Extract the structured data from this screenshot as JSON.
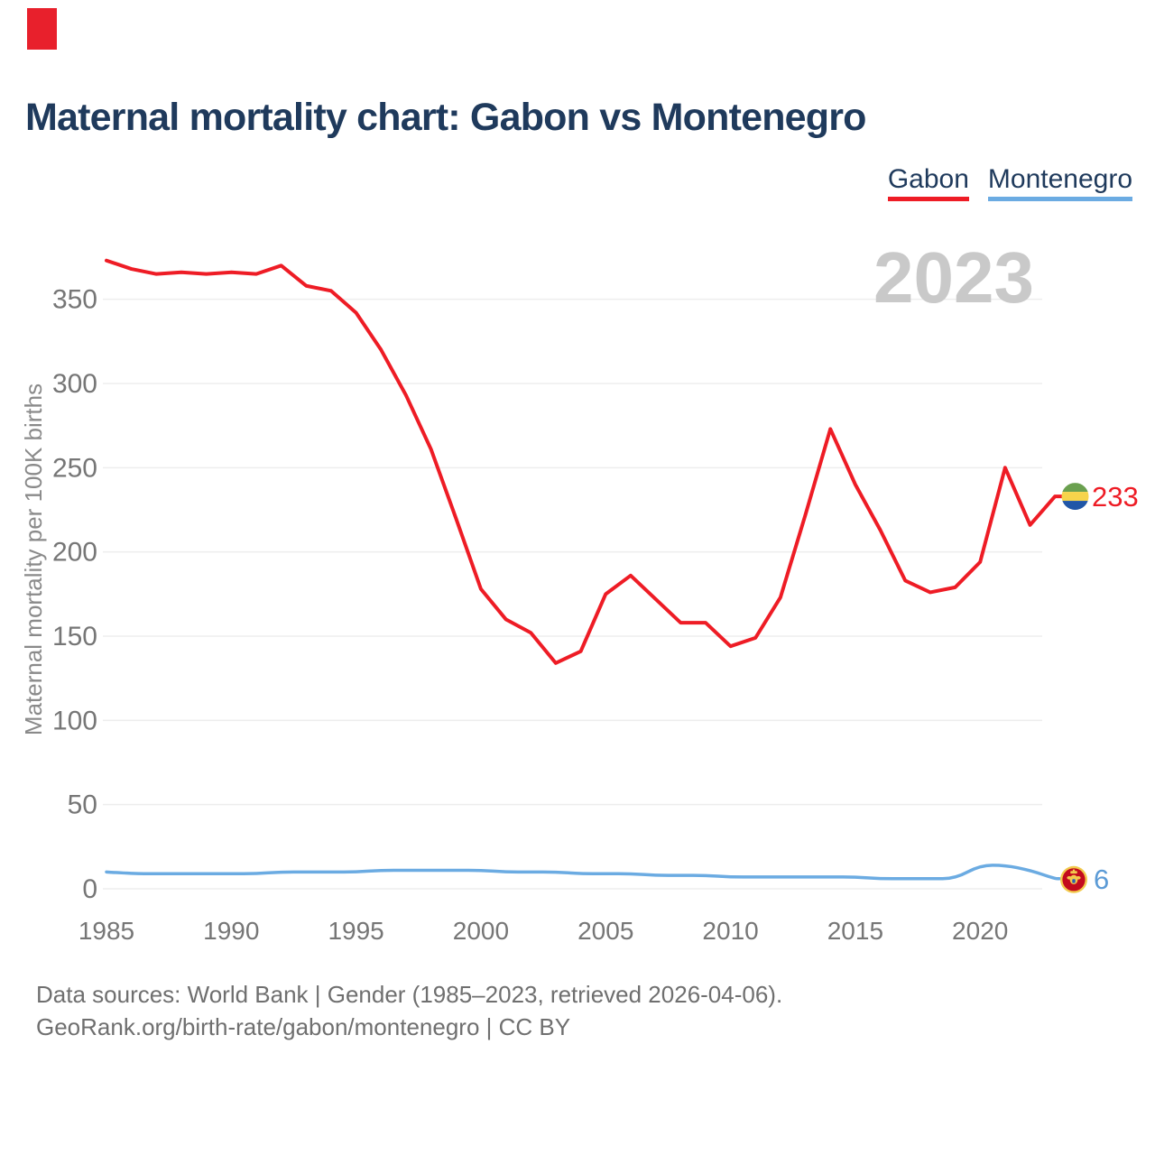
{
  "page": {
    "background": "#ffffff",
    "marker_color": "#e8202c"
  },
  "header": {
    "title": "Maternal mortality chart: Gabon vs Montenegro"
  },
  "legend": {
    "items": [
      {
        "label": "Gabon",
        "color": "#ee1c25"
      },
      {
        "label": "Montenegro",
        "color": "#6babe2"
      }
    ]
  },
  "watermark": {
    "text": "2023",
    "color": "#c9c9c9"
  },
  "chart_data": {
    "type": "line",
    "title": "Maternal mortality chart: Gabon vs Montenegro",
    "ylabel": "Maternal mortality per 100K births",
    "xlabel": "",
    "grid": "horizontal-only",
    "legend_position": "top-right",
    "x_ticks": [
      1985,
      1990,
      1995,
      2000,
      2005,
      2010,
      2015,
      2020
    ],
    "y_ticks": [
      0,
      50,
      100,
      150,
      200,
      250,
      300,
      350
    ],
    "ylim": [
      0,
      395
    ],
    "x": [
      1985,
      1986,
      1987,
      1988,
      1989,
      1990,
      1991,
      1992,
      1993,
      1994,
      1995,
      1996,
      1997,
      1998,
      1999,
      2000,
      2001,
      2002,
      2003,
      2004,
      2005,
      2006,
      2007,
      2008,
      2009,
      2010,
      2011,
      2012,
      2013,
      2014,
      2015,
      2016,
      2017,
      2018,
      2019,
      2020,
      2021,
      2022,
      2023
    ],
    "series": [
      {
        "name": "Gabon",
        "color": "#ee1c25",
        "end_label": "233",
        "values": [
          373,
          368,
          365,
          366,
          365,
          366,
          365,
          370,
          358,
          355,
          342,
          320,
          293,
          261,
          220,
          178,
          160,
          152,
          134,
          141,
          175,
          186,
          172,
          158,
          158,
          144,
          149,
          173,
          222,
          273,
          240,
          213,
          183,
          176,
          179,
          194,
          250,
          216,
          233
        ]
      },
      {
        "name": "Montenegro",
        "color": "#6babe2",
        "end_label": "6",
        "values": [
          10,
          9,
          9,
          9,
          9,
          9,
          9,
          10,
          10,
          10,
          10,
          11,
          11,
          11,
          11,
          11,
          10,
          10,
          10,
          9,
          9,
          9,
          8,
          8,
          8,
          7,
          7,
          7,
          7,
          7,
          7,
          6,
          6,
          6,
          6,
          14,
          14,
          11,
          6
        ]
      }
    ],
    "icons": {
      "gabon_flag_colors": [
        "#6aa04f",
        "#f6d44b",
        "#2056a7"
      ],
      "montenegro_flag_colors": [
        "#f2ca4d",
        "#c30b1e",
        "#2b5fb0"
      ]
    }
  },
  "axis_style": {
    "tick_color": "#767676",
    "grid_color": "#ededed",
    "axis_title_color": "#8a8a8a"
  },
  "footer": {
    "line1": "Data sources: World Bank | Gender (1985–2023, retrieved 2026-04-06).",
    "line2": "GeoRank.org/birth-rate/gabon/montenegro | CC BY"
  }
}
